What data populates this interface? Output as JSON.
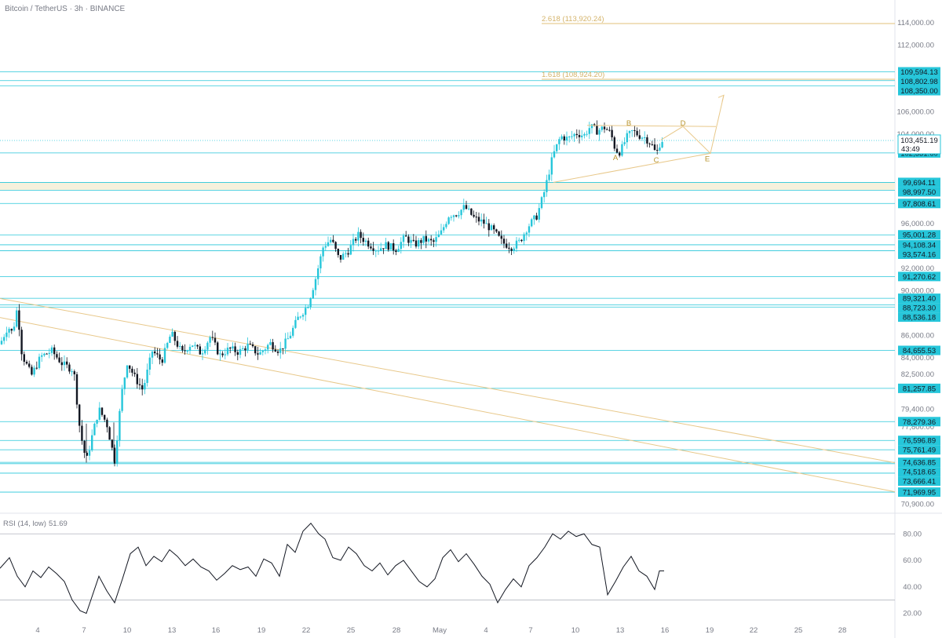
{
  "header": {
    "symbol": "Bitcoin",
    "quote": "TetherUS",
    "interval": "3h",
    "exchange": "BINANCE"
  },
  "colors": {
    "level_line": "#26c6da",
    "candle_up": "#26c6da",
    "candle_down": "#131722",
    "fib_line": "#e0c27a",
    "trendline": "#e8c88a",
    "zone_fill": "#f6f1dc",
    "rsi_line": "#131722",
    "rsi_band": "#b2b5be"
  },
  "chart_data": [
    {
      "type": "candlestick",
      "title": "Bitcoin / TetherUS · 3h · BINANCE",
      "ylim": [
        70500,
        114900
      ],
      "x_ticks": [
        "4",
        "7",
        "10",
        "13",
        "16",
        "19",
        "22",
        "25",
        "28",
        "May",
        "4",
        "7",
        "10",
        "13",
        "16",
        "19",
        "22",
        "25",
        "28"
      ],
      "y_ticks": [
        114000.0,
        112000.0,
        106000.0,
        104000.0,
        96000.0,
        92000.0,
        90000.0,
        86000.0,
        84000.0,
        82500.0,
        79400.0,
        77800.0,
        70900.0
      ],
      "price_path": [
        [
          0,
          85200
        ],
        [
          10,
          86800
        ],
        [
          16,
          86200
        ],
        [
          22,
          88500
        ],
        [
          28,
          84300
        ],
        [
          40,
          82400
        ],
        [
          52,
          84100
        ],
        [
          66,
          84600
        ],
        [
          80,
          83400
        ],
        [
          94,
          82900
        ],
        [
          102,
          77400
        ],
        [
          110,
          74700
        ],
        [
          118,
          77200
        ],
        [
          126,
          79400
        ],
        [
          136,
          78100
        ],
        [
          146,
          74800
        ],
        [
          155,
          80800
        ],
        [
          162,
          83600
        ],
        [
          172,
          82200
        ],
        [
          182,
          81100
        ],
        [
          194,
          84600
        ],
        [
          206,
          83700
        ],
        [
          218,
          86200
        ],
        [
          232,
          84400
        ],
        [
          244,
          85300
        ],
        [
          256,
          84400
        ],
        [
          268,
          85900
        ],
        [
          280,
          84200
        ],
        [
          292,
          84800
        ],
        [
          304,
          84500
        ],
        [
          316,
          85100
        ],
        [
          330,
          84300
        ],
        [
          344,
          85300
        ],
        [
          356,
          84600
        ],
        [
          368,
          85800
        ],
        [
          380,
          87600
        ],
        [
          392,
          88700
        ],
        [
          402,
          91100
        ],
        [
          412,
          94000
        ],
        [
          422,
          94600
        ],
        [
          432,
          92800
        ],
        [
          444,
          93600
        ],
        [
          456,
          95000
        ],
        [
          468,
          94300
        ],
        [
          480,
          93700
        ],
        [
          492,
          94100
        ],
        [
          504,
          93700
        ],
        [
          516,
          94800
        ],
        [
          528,
          94100
        ],
        [
          540,
          94600
        ],
        [
          552,
          94300
        ],
        [
          562,
          95200
        ],
        [
          572,
          96800
        ],
        [
          582,
          96900
        ],
        [
          592,
          97500
        ],
        [
          604,
          96500
        ],
        [
          616,
          96100
        ],
        [
          628,
          95400
        ],
        [
          640,
          94300
        ],
        [
          652,
          93900
        ],
        [
          662,
          94400
        ],
        [
          672,
          95700
        ],
        [
          684,
          96700
        ],
        [
          694,
          99000
        ],
        [
          704,
          102000
        ],
        [
          714,
          103800
        ],
        [
          724,
          103600
        ],
        [
          734,
          104100
        ],
        [
          744,
          103900
        ],
        [
          752,
          104700
        ],
        [
          760,
          104300
        ],
        [
          770,
          104600
        ],
        [
          778,
          104100
        ],
        [
          784,
          102600
        ],
        [
          790,
          102400
        ],
        [
          798,
          103700
        ],
        [
          806,
          104300
        ],
        [
          814,
          103900
        ],
        [
          822,
          103700
        ],
        [
          830,
          103100
        ],
        [
          836,
          102200
        ],
        [
          842,
          103500
        ],
        [
          846,
          103451
        ]
      ],
      "levels": [
        {
          "price": 109594.13,
          "label": "109,594.13"
        },
        {
          "price": 108802.98,
          "label": "108,802.98"
        },
        {
          "price": 108350.0,
          "label": "108,350.00"
        },
        {
          "price": 102331.6,
          "label": "102,331.60"
        },
        {
          "price": 99694.11,
          "label": "99,694.11"
        },
        {
          "price": 98997.5,
          "label": "98,997.50"
        },
        {
          "price": 97808.61,
          "label": "97,808.61"
        },
        {
          "price": 95001.28,
          "label": "95,001.28"
        },
        {
          "price": 94108.34,
          "label": "94,108.34"
        },
        {
          "price": 93574.16,
          "label": "93,574.16"
        },
        {
          "price": 91270.62,
          "label": "91,270.62"
        },
        {
          "price": 89321.4,
          "label": "89,321.40"
        },
        {
          "price": 88723.3,
          "label": "88,723.30"
        },
        {
          "price": 88536.18,
          "label": "88,536.18"
        },
        {
          "price": 84655.53,
          "label": "84,655.53"
        },
        {
          "price": 81257.85,
          "label": "81,257.85"
        },
        {
          "price": 78279.36,
          "label": "78,279.36"
        },
        {
          "price": 76596.89,
          "label": "76,596.89"
        },
        {
          "price": 75761.49,
          "label": "75,761.49"
        },
        {
          "price": 74636.85,
          "label": "74,636.85"
        },
        {
          "price": 74518.65,
          "label": "74,518.65"
        },
        {
          "price": 73666.41,
          "label": "73,666.41"
        },
        {
          "price": 71969.95,
          "label": "71,969.95"
        }
      ],
      "current_price": {
        "price": 103451.19,
        "label": "103,451.19",
        "countdown": "43:49"
      },
      "fib_levels": [
        {
          "price": 113920.24,
          "label": "2.618 (113,920.24)"
        },
        {
          "price": 108924.2,
          "label": "1.618 (108,924.20)"
        }
      ],
      "support_zone": [
        98997.5,
        99694.11
      ],
      "trendlines": [
        {
          "from": [
            0,
            89300
          ],
          "to": [
            1140,
            74600
          ]
        },
        {
          "from": [
            0,
            87600
          ],
          "to": [
            1140,
            72000
          ]
        }
      ],
      "triangle": {
        "upper": {
          "from": [
            748,
            104800
          ],
          "to": [
            912,
            104700
          ]
        },
        "lower": {
          "from": [
            705,
            99700
          ],
          "to": [
            905,
            102300
          ]
        },
        "projection": [
          [
            842,
            103500
          ],
          [
            870,
            104700
          ],
          [
            905,
            102300
          ],
          [
            922,
            107500
          ]
        ],
        "waves": [
          {
            "name": "A",
            "x": 784,
            "price": 101900
          },
          {
            "name": "B",
            "x": 801,
            "price": 105000
          },
          {
            "name": "C",
            "x": 836,
            "price": 101700
          },
          {
            "name": "D",
            "x": 870,
            "price": 105000
          },
          {
            "name": "E",
            "x": 901,
            "price": 101800
          }
        ]
      }
    },
    {
      "type": "line",
      "title": "RSI (14, low)",
      "last_value": "51.69",
      "ylim": [
        15,
        92
      ],
      "y_ticks": [
        80.0,
        60.0,
        40.0,
        20.0
      ],
      "bands": [
        80,
        30
      ],
      "x": [
        0,
        12,
        22,
        32,
        42,
        52,
        62,
        72,
        82,
        92,
        102,
        110,
        118,
        126,
        136,
        146,
        156,
        166,
        176,
        186,
        196,
        206,
        216,
        226,
        236,
        246,
        256,
        266,
        276,
        286,
        296,
        306,
        316,
        326,
        336,
        346,
        356,
        366,
        376,
        386,
        396,
        406,
        414,
        424,
        434,
        444,
        454,
        464,
        474,
        484,
        494,
        504,
        514,
        524,
        534,
        544,
        554,
        564,
        574,
        584,
        594,
        604,
        614,
        624,
        634,
        644,
        654,
        664,
        674,
        684,
        694,
        704,
        714,
        724,
        734,
        744,
        754,
        764,
        774,
        784,
        794,
        804,
        814,
        824,
        834,
        840,
        846
      ],
      "values": [
        54,
        62,
        48,
        40,
        52,
        47,
        55,
        50,
        44,
        30,
        22,
        20,
        34,
        48,
        37,
        28,
        46,
        65,
        70,
        56,
        63,
        59,
        68,
        63,
        56,
        61,
        55,
        52,
        45,
        50,
        56,
        53,
        55,
        48,
        61,
        58,
        48,
        72,
        66,
        82,
        88,
        80,
        76,
        62,
        60,
        70,
        65,
        56,
        52,
        58,
        49,
        56,
        60,
        52,
        44,
        40,
        46,
        62,
        68,
        59,
        65,
        57,
        48,
        42,
        28,
        38,
        46,
        40,
        56,
        62,
        70,
        80,
        76,
        82,
        78,
        80,
        72,
        70,
        34,
        44,
        55,
        63,
        52,
        48,
        38,
        52,
        52
      ]
    }
  ]
}
